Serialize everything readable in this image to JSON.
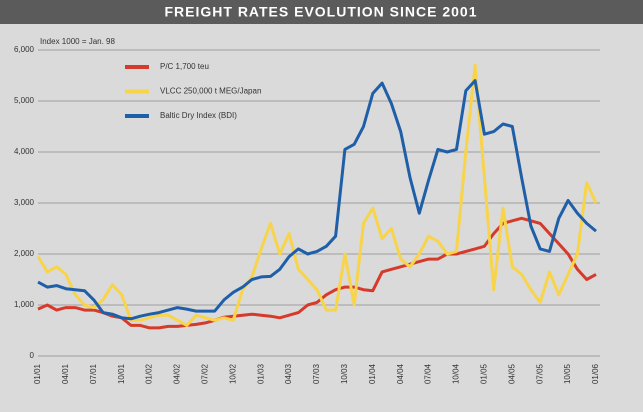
{
  "chart_data": {
    "type": "line",
    "title": "FREIGHT RATES EVOLUTION SINCE 2001",
    "annotation": "Index 1000 = Jan. 98",
    "categories": [
      "01/01",
      null,
      null,
      "04/01",
      null,
      null,
      "07/01",
      null,
      null,
      "10/01",
      null,
      null,
      "01/02",
      null,
      null,
      "04/02",
      null,
      null,
      "07/02",
      null,
      null,
      "10/02",
      null,
      null,
      "01/03",
      null,
      null,
      "04/03",
      null,
      null,
      "07/03",
      null,
      null,
      "10/03",
      null,
      null,
      "01/04",
      null,
      null,
      "04/04",
      null,
      null,
      "07/04",
      null,
      null,
      "10/04",
      null,
      null,
      "01/05",
      null,
      null,
      "04/05",
      null,
      null,
      "07/05",
      null,
      null,
      "10/05",
      null,
      null,
      "01/06"
    ],
    "series": [
      {
        "name": "P/C 1,700 teu",
        "color": "#d63a2a",
        "values": [
          920,
          1000,
          900,
          950,
          950,
          900,
          900,
          850,
          780,
          750,
          600,
          600,
          550,
          550,
          580,
          580,
          600,
          620,
          650,
          700,
          760,
          780,
          800,
          820,
          800,
          780,
          750,
          800,
          850,
          1000,
          1050,
          1200,
          1300,
          1350,
          1350,
          1300,
          1280,
          1650,
          1700,
          1750,
          1800,
          1850,
          1900,
          1900,
          2000,
          2000,
          2050,
          2100,
          2150,
          2400,
          2600,
          2650,
          2700,
          2650,
          2600,
          2400,
          2200,
          2000,
          1700,
          1500,
          1600
        ]
      },
      {
        "name": "VLCC 250,000 t MEG/Japan",
        "color": "#f7d44a",
        "values": [
          1950,
          1650,
          1750,
          1600,
          1200,
          1000,
          950,
          1100,
          1400,
          1200,
          700,
          700,
          750,
          800,
          800,
          700,
          600,
          800,
          750,
          700,
          750,
          700,
          1300,
          1550,
          2100,
          2600,
          2000,
          2400,
          1700,
          1500,
          1300,
          900,
          900,
          2000,
          1000,
          2600,
          2900,
          2300,
          2500,
          1900,
          1750,
          2000,
          2350,
          2250,
          2000,
          2050,
          4000,
          5700,
          3500,
          1300,
          2900,
          1750,
          1600,
          1300,
          1050,
          1650,
          1200,
          1600,
          2000,
          3400,
          3000
        ]
      },
      {
        "name": "Baltic Dry Index (BDI)",
        "color": "#1f5fa8",
        "values": [
          1450,
          1350,
          1380,
          1320,
          1300,
          1280,
          1100,
          850,
          820,
          750,
          730,
          780,
          820,
          850,
          900,
          950,
          920,
          880,
          880,
          880,
          1100,
          1250,
          1350,
          1500,
          1550,
          1560,
          1700,
          1950,
          2100,
          2000,
          2050,
          2150,
          2350,
          4050,
          4150,
          4500,
          5150,
          5350,
          4950,
          4400,
          3500,
          2800,
          3450,
          4050,
          4000,
          4050,
          5200,
          5400,
          4350,
          4400,
          4550,
          4500,
          3500,
          2550,
          2100,
          2050,
          2700,
          3050,
          2800,
          2600,
          2450
        ]
      }
    ],
    "ylim": [
      0,
      6000
    ],
    "yticks": [
      0,
      {
        "value": 1000,
        "label": "1,000"
      },
      {
        "value": 2000,
        "label": "2,000"
      },
      {
        "value": 3000,
        "label": "3,000"
      },
      {
        "value": 4000,
        "label": "4,000"
      },
      {
        "value": 5000,
        "label": "5,000"
      },
      {
        "value": 6000,
        "label": "6,000"
      }
    ],
    "grid": true,
    "legend": "top-left"
  }
}
